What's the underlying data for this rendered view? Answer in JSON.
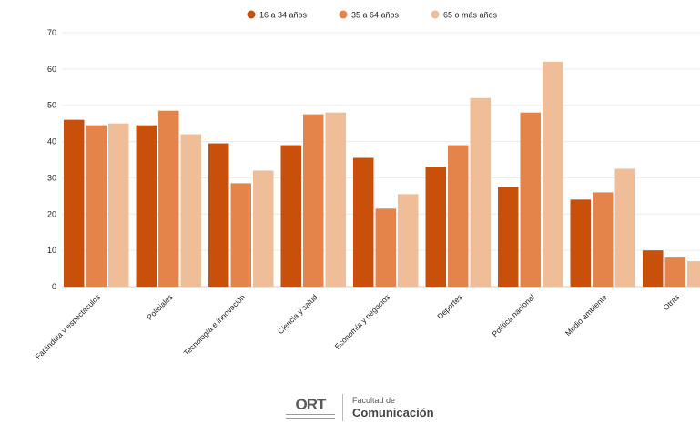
{
  "chart_data": {
    "type": "bar",
    "categories": [
      "Farándula y espectáculos",
      "Policiales",
      "Tecnología e innovación",
      "Ciencia y salud",
      "Economía y negocios",
      "Deportes",
      "Política nacional",
      "Medio ambiente",
      "Otras"
    ],
    "series": [
      {
        "name": "16 a 34 años",
        "color": "#c8500a",
        "values": [
          46,
          44.5,
          39.5,
          39,
          35.5,
          33,
          27.5,
          24,
          10
        ]
      },
      {
        "name": "35 a 64 años",
        "color": "#e5844a",
        "values": [
          44.5,
          48.5,
          28.5,
          47.5,
          21.5,
          39,
          48,
          26,
          8
        ]
      },
      {
        "name": "65 o más años",
        "color": "#efbd98",
        "values": [
          45,
          42,
          32,
          48,
          25.5,
          52,
          62,
          32.5,
          7
        ]
      }
    ],
    "yticks": [
      0,
      10,
      20,
      30,
      40,
      50,
      60,
      70
    ],
    "ylim": [
      0,
      70
    ],
    "grid": true,
    "legend_position": "top-center"
  },
  "footer": {
    "logo_text": "ORT",
    "faculty_line1": "Facultad de",
    "faculty_line2": "Comunicación"
  }
}
